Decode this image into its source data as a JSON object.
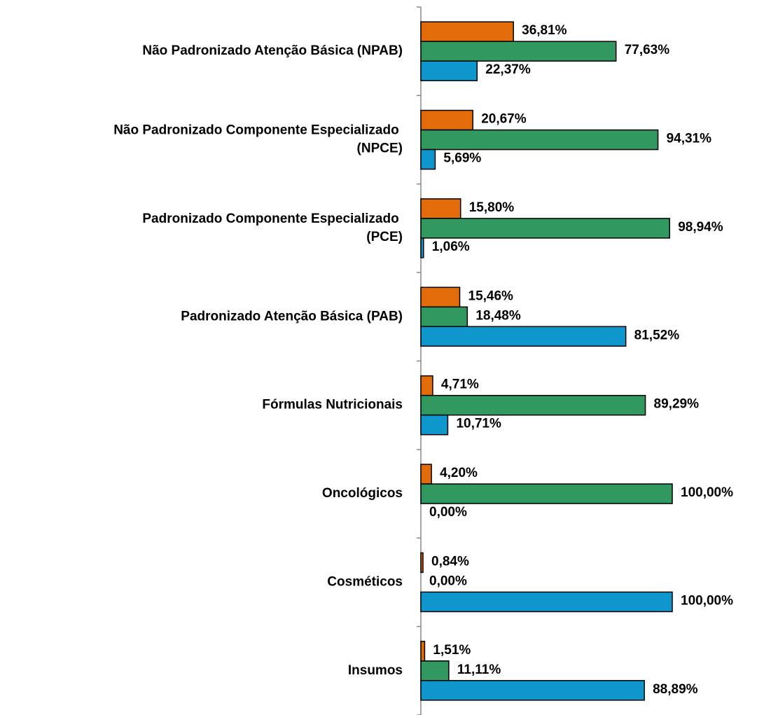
{
  "chart_data": {
    "type": "bar",
    "orientation": "horizontal",
    "categories": [
      "Não Padronizado Atenção Básica (NPAB)",
      "Não Padronizado Componente Especializado (NPCE)",
      "Padronizado Componente Especializado (PCE)",
      "Padronizado Atenção Básica (PAB)",
      "Fórmulas Nutricionais",
      "Oncológicos",
      "Cosméticos",
      "Insumos"
    ],
    "series": [
      {
        "color": "#e36c0a",
        "values": [
          36.81,
          20.67,
          15.8,
          15.46,
          4.71,
          4.2,
          0.84,
          1.51
        ],
        "value_labels": [
          "36,81%",
          "20,67%",
          "15,80%",
          "15,46%",
          "4,71%",
          "4,20%",
          "0,84%",
          "1,51%"
        ]
      },
      {
        "color": "#31995f",
        "values": [
          77.63,
          94.31,
          98.94,
          18.48,
          89.29,
          100,
          0,
          11.11
        ],
        "value_labels": [
          "77,63%",
          "94,31%",
          "98,94%",
          "18,48%",
          "89,29%",
          "100,00%",
          "0,00%",
          "11,11%"
        ]
      },
      {
        "color": "#0f97cd",
        "values": [
          22.37,
          5.69,
          1.06,
          81.52,
          10.71,
          0,
          100,
          88.89
        ],
        "value_labels": [
          "22,37%",
          "5,69%",
          "1,06%",
          "81,52%",
          "10,71%",
          "0,00%",
          "100,00%",
          "88,89%"
        ]
      }
    ],
    "xlim": [
      0,
      100
    ]
  }
}
